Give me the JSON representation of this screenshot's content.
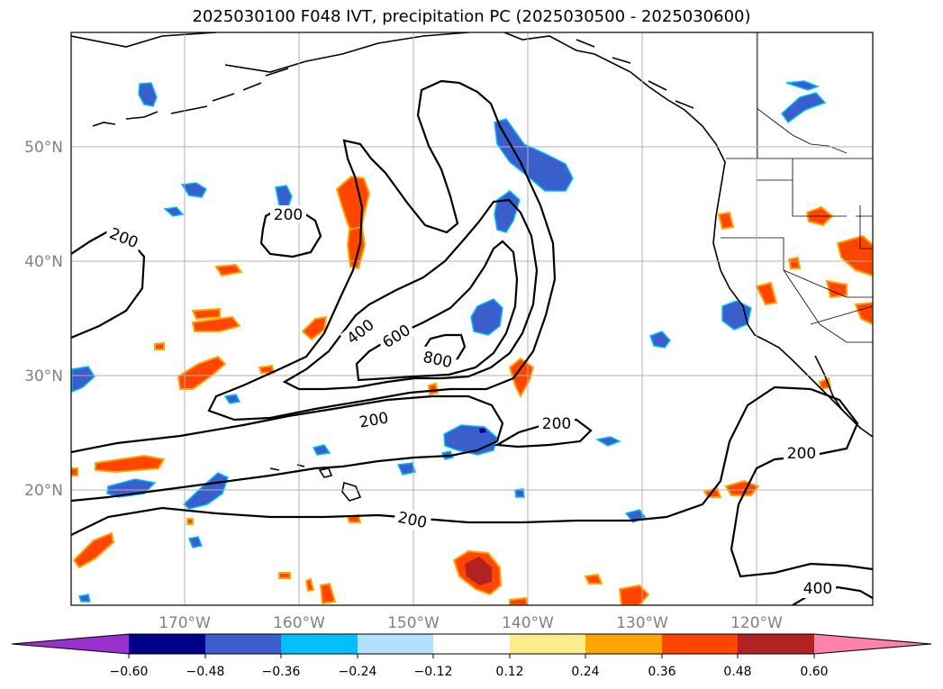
{
  "title": "2025030100 F048 IVT, precipitation PC (2025030500 - 2025030600)",
  "map": {
    "lat_labels": [
      "50°N",
      "40°N",
      "30°N",
      "20°N"
    ],
    "lon_labels": [
      "170°W",
      "160°W",
      "150°W",
      "140°W",
      "130°W",
      "120°W"
    ],
    "ivt_contours": [
      {
        "id": "200-west",
        "text": "200"
      },
      {
        "id": "200-island",
        "text": "200"
      },
      {
        "id": "400-main",
        "text": "400"
      },
      {
        "id": "600-main",
        "text": "600"
      },
      {
        "id": "800-main",
        "text": "800"
      },
      {
        "id": "200-south-arc",
        "text": "200"
      },
      {
        "id": "200-east-loop",
        "text": "200"
      },
      {
        "id": "200-coast",
        "text": "200"
      },
      {
        "id": "200-south",
        "text": "200"
      },
      {
        "id": "400-southeast",
        "text": "400"
      }
    ]
  },
  "colorbar": {
    "colors": [
      "#9932CC",
      "#00008B",
      "#3A5FCD",
      "#00BFFF",
      "#B0E2FF",
      "#FFFFFF",
      "#FFEC8B",
      "#FFA500",
      "#FF4500",
      "#B22222",
      "#FF82AB"
    ],
    "tick_labels": [
      "−0.60",
      "−0.48",
      "−0.36",
      "−0.24",
      "−0.12",
      "0.12",
      "0.24",
      "0.36",
      "0.48",
      "0.60"
    ]
  }
}
